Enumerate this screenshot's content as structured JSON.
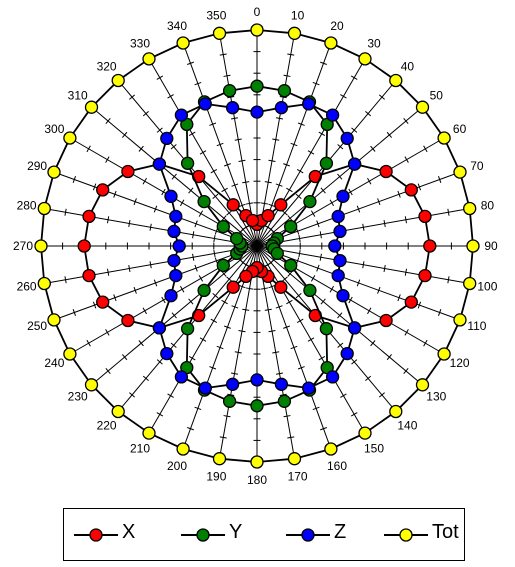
{
  "chart_data": {
    "type": "polar-line",
    "angular_unit": "degrees",
    "angle_ticks": [
      "0",
      "10",
      "20",
      "30",
      "40",
      "50",
      "60",
      "70",
      "80",
      "90",
      "100",
      "110",
      "120",
      "130",
      "140",
      "150",
      "160",
      "170",
      "180",
      "190",
      "200",
      "210",
      "220",
      "230",
      "240",
      "250",
      "260",
      "270",
      "280",
      "290",
      "300",
      "310",
      "320",
      "330",
      "340",
      "350"
    ],
    "radial_range": [
      0,
      10
    ],
    "grid": true,
    "legend_position": "bottom",
    "series": [
      {
        "name": "X",
        "color": "#ff0000",
        "r": [
          1.0,
          1.2,
          1.5,
          2.2,
          4.2,
          5.9,
          6.9,
          7.6,
          7.9,
          8.0,
          7.9,
          7.6,
          6.9,
          5.9,
          4.2,
          2.2,
          1.5,
          1.2,
          1.0,
          1.2,
          1.5,
          2.2,
          4.2,
          5.9,
          6.9,
          7.6,
          7.9,
          8.0,
          7.9,
          7.6,
          6.9,
          5.9,
          4.2,
          2.2,
          1.5,
          1.2
        ]
      },
      {
        "name": "Y",
        "color": "#008000",
        "r": [
          7.4,
          7.3,
          7.1,
          6.5,
          5.0,
          3.2,
          1.8,
          1.0,
          0.8,
          0.7,
          0.8,
          1.0,
          1.8,
          3.2,
          5.0,
          6.5,
          7.1,
          7.3,
          7.4,
          7.3,
          7.1,
          6.5,
          5.0,
          3.2,
          1.8,
          1.0,
          0.8,
          0.7,
          0.8,
          1.0,
          1.8,
          3.2,
          5.0,
          6.5,
          7.1,
          7.3
        ]
      },
      {
        "name": "Z",
        "color": "#0000ff",
        "r": [
          6.2,
          6.5,
          7.0,
          7.0,
          6.5,
          5.9,
          4.6,
          4.0,
          3.9,
          3.6,
          3.9,
          4.0,
          4.6,
          5.9,
          6.5,
          7.0,
          7.0,
          6.5,
          6.2,
          6.5,
          7.0,
          7.0,
          6.5,
          5.9,
          4.6,
          4.0,
          3.9,
          3.6,
          3.9,
          4.0,
          4.6,
          5.9,
          6.5,
          7.0,
          7.0,
          6.5
        ]
      },
      {
        "name": "Tot",
        "color": "#ffff00",
        "r": [
          10,
          10,
          10,
          10,
          10,
          10,
          10,
          10,
          10,
          10,
          10,
          10,
          10,
          10,
          10,
          10,
          10,
          10,
          10,
          10,
          10,
          10,
          10,
          10,
          10,
          10,
          10,
          10,
          10,
          10,
          10,
          10,
          10,
          10,
          10,
          10
        ]
      }
    ]
  },
  "legend": {
    "items": [
      {
        "label": "X",
        "color": "#ff0000"
      },
      {
        "label": "Y",
        "color": "#008000"
      },
      {
        "label": "Z",
        "color": "#0000ff"
      },
      {
        "label": "Tot",
        "color": "#ffff00"
      }
    ]
  }
}
